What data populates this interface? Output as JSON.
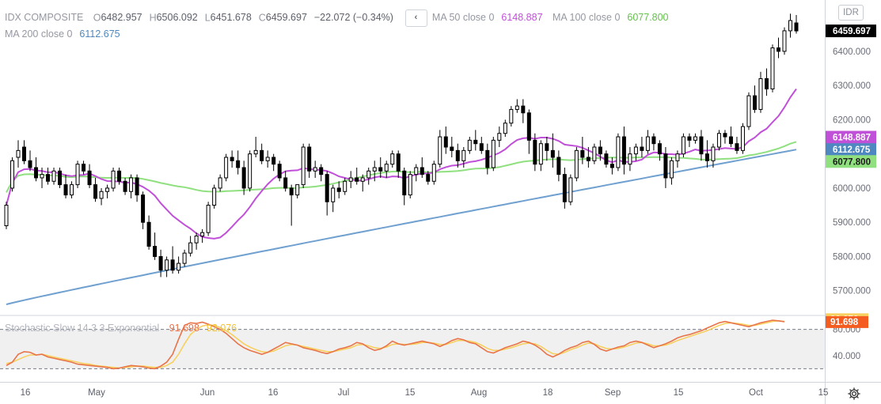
{
  "header": {
    "symbol": "IDX COMPOSITE",
    "o_label": "O",
    "o_value": "6482.957",
    "h_label": "H",
    "h_value": "6506.092",
    "l_label": "L",
    "l_value": "6451.678",
    "c_label": "C",
    "c_value": "6459.697",
    "change": "−22.072 (−0.34%)",
    "collapse_glyph": "‹",
    "ma50_label": "MA 50 close 0",
    "ma50_value": "6148.887",
    "ma100_label": "MA 100 close 0",
    "ma100_value": "6077.800",
    "ma200_label": "MA 200 close 0",
    "ma200_value": "6112.675",
    "currency": "IDR"
  },
  "stoch": {
    "label": "Stochastic Slow 14 3 3 Exponential",
    "k_value": "91.698",
    "d_value": "92.076"
  },
  "colors": {
    "ma50": "#c050d8",
    "ma100": "#90e080",
    "ma200": "#6fa0d0",
    "stoch_k": "#e8744a",
    "stoch_d": "#f7d060",
    "band": "#f0f0f0",
    "candle": "#000000"
  },
  "icons": {
    "settings": "gear-icon"
  },
  "chart_data": {
    "type": "candlestick",
    "price_axis": {
      "ticks": [
        5700,
        5800,
        5900,
        6000,
        6100,
        6200,
        6300,
        6400,
        6500
      ],
      "tick_labels": [
        "5700.000",
        "5800.000",
        "5900.000",
        "6000.000",
        "6100.000",
        "6200.000",
        "6300.000",
        "6400.000",
        "6500.000"
      ],
      "range": [
        5630,
        6550
      ]
    },
    "x_axis": {
      "labels": [
        "16",
        "May",
        "Jun",
        "16",
        "Jul",
        "15",
        "Aug",
        "18",
        "Sep",
        "15",
        "Oct",
        "15"
      ]
    },
    "last_price_label": "6459.697",
    "ma_labels": [
      "6148.887",
      "6112.675",
      "6077.800"
    ],
    "candles": [
      [
        5890,
        5960,
        5880,
        5950
      ],
      [
        6000,
        6090,
        5990,
        6080
      ],
      [
        6090,
        6140,
        6060,
        6110
      ],
      [
        6120,
        6140,
        6070,
        6080
      ],
      [
        6080,
        6110,
        6050,
        6060
      ],
      [
        6060,
        6090,
        6020,
        6030
      ],
      [
        6030,
        6060,
        6000,
        6040
      ],
      [
        6040,
        6060,
        6010,
        6020
      ],
      [
        6020,
        6060,
        6010,
        6050
      ],
      [
        6050,
        6060,
        6000,
        6010
      ],
      [
        6010,
        6040,
        5970,
        5980
      ],
      [
        5980,
        6020,
        5970,
        6010
      ],
      [
        6010,
        6080,
        6000,
        6070
      ],
      [
        6070,
        6080,
        6040,
        6050
      ],
      [
        6050,
        6070,
        6000,
        6010
      ],
      [
        6010,
        6030,
        5960,
        5970
      ],
      [
        5970,
        6000,
        5950,
        5990
      ],
      [
        5990,
        6010,
        5970,
        6000
      ],
      [
        6000,
        6060,
        5990,
        6050
      ],
      [
        6050,
        6060,
        6010,
        6020
      ],
      [
        6020,
        6030,
        5980,
        5990
      ],
      [
        5990,
        6040,
        5970,
        6030
      ],
      [
        6030,
        6040,
        5960,
        5980
      ],
      [
        5980,
        5990,
        5880,
        5900
      ],
      [
        5900,
        5920,
        5820,
        5830
      ],
      [
        5830,
        5870,
        5790,
        5800
      ],
      [
        5800,
        5820,
        5740,
        5760
      ],
      [
        5760,
        5800,
        5740,
        5790
      ],
      [
        5790,
        5830,
        5750,
        5760
      ],
      [
        5760,
        5800,
        5750,
        5780
      ],
      [
        5780,
        5820,
        5770,
        5810
      ],
      [
        5810,
        5860,
        5800,
        5840
      ],
      [
        5840,
        5870,
        5820,
        5860
      ],
      [
        5860,
        5880,
        5840,
        5870
      ],
      [
        5870,
        5960,
        5860,
        5950
      ],
      [
        5950,
        6010,
        5940,
        6000
      ],
      [
        6000,
        6040,
        5990,
        6030
      ],
      [
        6030,
        6100,
        6020,
        6090
      ],
      [
        6090,
        6110,
        6060,
        6080
      ],
      [
        6080,
        6110,
        6040,
        6060
      ],
      [
        6060,
        6080,
        5980,
        6000
      ],
      [
        6000,
        6110,
        5990,
        6100
      ],
      [
        6100,
        6150,
        6090,
        6110
      ],
      [
        6110,
        6130,
        6070,
        6080
      ],
      [
        6080,
        6110,
        6060,
        6090
      ],
      [
        6090,
        6100,
        6050,
        6070
      ],
      [
        6070,
        6080,
        6020,
        6030
      ],
      [
        6030,
        6050,
        5990,
        6000
      ],
      [
        6000,
        6010,
        5890,
        5980
      ],
      [
        5980,
        6010,
        5970,
        6010
      ],
      [
        6010,
        6130,
        6000,
        6120
      ],
      [
        6120,
        6130,
        6030,
        6050
      ],
      [
        6050,
        6080,
        6030,
        6060
      ],
      [
        6060,
        6070,
        6020,
        6040
      ],
      [
        6040,
        6050,
        5920,
        5960
      ],
      [
        5960,
        6010,
        5930,
        6000
      ],
      [
        6000,
        6020,
        5970,
        5990
      ],
      [
        5990,
        6030,
        5980,
        6020
      ],
      [
        6020,
        6050,
        6000,
        6030
      ],
      [
        6030,
        6060,
        6010,
        6020
      ],
      [
        6020,
        6040,
        5990,
        6030
      ],
      [
        6030,
        6060,
        6010,
        6050
      ],
      [
        6050,
        6080,
        6020,
        6060
      ],
      [
        6060,
        6090,
        6030,
        6050
      ],
      [
        6050,
        6080,
        6030,
        6070
      ],
      [
        6070,
        6110,
        6060,
        6100
      ],
      [
        6100,
        6110,
        6030,
        6050
      ],
      [
        6050,
        6060,
        5950,
        5980
      ],
      [
        5980,
        6050,
        5970,
        6040
      ],
      [
        6040,
        6070,
        6020,
        6060
      ],
      [
        6060,
        6090,
        6030,
        6040
      ],
      [
        6040,
        6050,
        6010,
        6020
      ],
      [
        6020,
        6080,
        6010,
        6070
      ],
      [
        6070,
        6170,
        6060,
        6150
      ],
      [
        6150,
        6180,
        6100,
        6120
      ],
      [
        6120,
        6150,
        6090,
        6110
      ],
      [
        6110,
        6130,
        6060,
        6080
      ],
      [
        6080,
        6120,
        6060,
        6110
      ],
      [
        6110,
        6150,
        6100,
        6140
      ],
      [
        6140,
        6170,
        6110,
        6130
      ],
      [
        6130,
        6150,
        6100,
        6110
      ],
      [
        6110,
        6130,
        6040,
        6060
      ],
      [
        6060,
        6150,
        6050,
        6140
      ],
      [
        6140,
        6180,
        6120,
        6160
      ],
      [
        6160,
        6200,
        6150,
        6190
      ],
      [
        6190,
        6240,
        6180,
        6230
      ],
      [
        6230,
        6260,
        6220,
        6240
      ],
      [
        6240,
        6260,
        6190,
        6220
      ],
      [
        6220,
        6230,
        6100,
        6140
      ],
      [
        6140,
        6160,
        6050,
        6070
      ],
      [
        6070,
        6140,
        6050,
        6130
      ],
      [
        6130,
        6150,
        6080,
        6110
      ],
      [
        6110,
        6160,
        6060,
        6090
      ],
      [
        6090,
        6110,
        6020,
        6040
      ],
      [
        6040,
        6060,
        5940,
        5960
      ],
      [
        5960,
        6040,
        5950,
        6030
      ],
      [
        6030,
        6120,
        6020,
        6110
      ],
      [
        6110,
        6150,
        6070,
        6090
      ],
      [
        6090,
        6120,
        6060,
        6080
      ],
      [
        6080,
        6130,
        6070,
        6120
      ],
      [
        6120,
        6140,
        6080,
        6100
      ],
      [
        6100,
        6110,
        6060,
        6070
      ],
      [
        6070,
        6090,
        6040,
        6060
      ],
      [
        6060,
        6160,
        6050,
        6150
      ],
      [
        6150,
        6180,
        6040,
        6070
      ],
      [
        6070,
        6120,
        6050,
        6100
      ],
      [
        6100,
        6130,
        6080,
        6120
      ],
      [
        6120,
        6150,
        6090,
        6110
      ],
      [
        6110,
        6170,
        6100,
        6150
      ],
      [
        6150,
        6160,
        6110,
        6130
      ],
      [
        6130,
        6140,
        6080,
        6100
      ],
      [
        6100,
        6120,
        6000,
        6030
      ],
      [
        6030,
        6090,
        6010,
        6080
      ],
      [
        6080,
        6110,
        6060,
        6100
      ],
      [
        6100,
        6160,
        6090,
        6150
      ],
      [
        6150,
        6160,
        6120,
        6140
      ],
      [
        6140,
        6160,
        6130,
        6150
      ],
      [
        6150,
        6170,
        6080,
        6100
      ],
      [
        6100,
        6140,
        6060,
        6080
      ],
      [
        6080,
        6130,
        6060,
        6120
      ],
      [
        6120,
        6170,
        6110,
        6160
      ],
      [
        6160,
        6170,
        6130,
        6150
      ],
      [
        6150,
        6180,
        6120,
        6130
      ],
      [
        6130,
        6150,
        6100,
        6110
      ],
      [
        6110,
        6190,
        6100,
        6180
      ],
      [
        6180,
        6280,
        6170,
        6270
      ],
      [
        6270,
        6300,
        6220,
        6230
      ],
      [
        6230,
        6340,
        6220,
        6320
      ],
      [
        6320,
        6350,
        6270,
        6290
      ],
      [
        6290,
        6420,
        6280,
        6410
      ],
      [
        6410,
        6440,
        6380,
        6400
      ],
      [
        6400,
        6470,
        6390,
        6460
      ],
      [
        6460,
        6510,
        6440,
        6490
      ],
      [
        6482.957,
        6506.092,
        6451.678,
        6459.697
      ]
    ],
    "stoch_axis": {
      "range": [
        0,
        100
      ],
      "ticks": [
        40,
        80
      ],
      "tick_labels": [
        "40.000",
        "80.000"
      ],
      "band": [
        20,
        80
      ]
    },
    "stoch_k": [
      25,
      30,
      42,
      46,
      45,
      41,
      42,
      38,
      36,
      34,
      32,
      30,
      27,
      26,
      25,
      24,
      23,
      22,
      20,
      21,
      23,
      25,
      24,
      23,
      21,
      20,
      24,
      30,
      42,
      65,
      86,
      90,
      89,
      91,
      88,
      84,
      80,
      74,
      66,
      58,
      52,
      48,
      45,
      42,
      45,
      50,
      55,
      60,
      58,
      56,
      52,
      50,
      48,
      45,
      43,
      46,
      50,
      52,
      55,
      60,
      58,
      52,
      48,
      50,
      55,
      62,
      58,
      56,
      58,
      60,
      62,
      60,
      58,
      54,
      58,
      63,
      66,
      64,
      60,
      58,
      52,
      46,
      44,
      48,
      52,
      55,
      58,
      62,
      60,
      56,
      50,
      42,
      38,
      42,
      48,
      52,
      55,
      60,
      62,
      57,
      50,
      47,
      50,
      53,
      55,
      60,
      62,
      60,
      56,
      52,
      55,
      58,
      62,
      67,
      70,
      72,
      75,
      78,
      82,
      86,
      90,
      92,
      90,
      88,
      86,
      84,
      87,
      90,
      92,
      94,
      93,
      91.698
    ],
    "stoch_d": [
      28,
      30,
      34,
      38,
      41,
      41,
      42,
      40,
      38,
      36,
      34,
      32,
      30,
      28,
      27,
      25,
      24,
      23,
      22,
      21,
      22,
      23,
      24,
      24,
      23,
      22,
      22,
      25,
      30,
      42,
      58,
      72,
      80,
      85,
      87,
      86,
      83,
      78,
      72,
      65,
      58,
      53,
      49,
      46,
      45,
      47,
      51,
      55,
      57,
      56,
      54,
      52,
      50,
      48,
      46,
      46,
      48,
      50,
      52,
      56,
      57,
      55,
      52,
      51,
      53,
      57,
      58,
      57,
      57,
      58,
      60,
      60,
      59,
      57,
      57,
      60,
      63,
      63,
      62,
      60,
      56,
      51,
      48,
      48,
      50,
      52,
      55,
      58,
      59,
      58,
      54,
      48,
      43,
      42,
      45,
      49,
      52,
      56,
      59,
      58,
      54,
      51,
      50,
      51,
      53,
      56,
      59,
      60,
      58,
      55,
      55,
      56,
      59,
      63,
      66,
      69,
      72,
      75,
      78,
      82,
      86,
      89,
      90,
      89,
      88,
      86,
      86,
      88,
      90,
      92,
      93,
      92.076
    ]
  }
}
